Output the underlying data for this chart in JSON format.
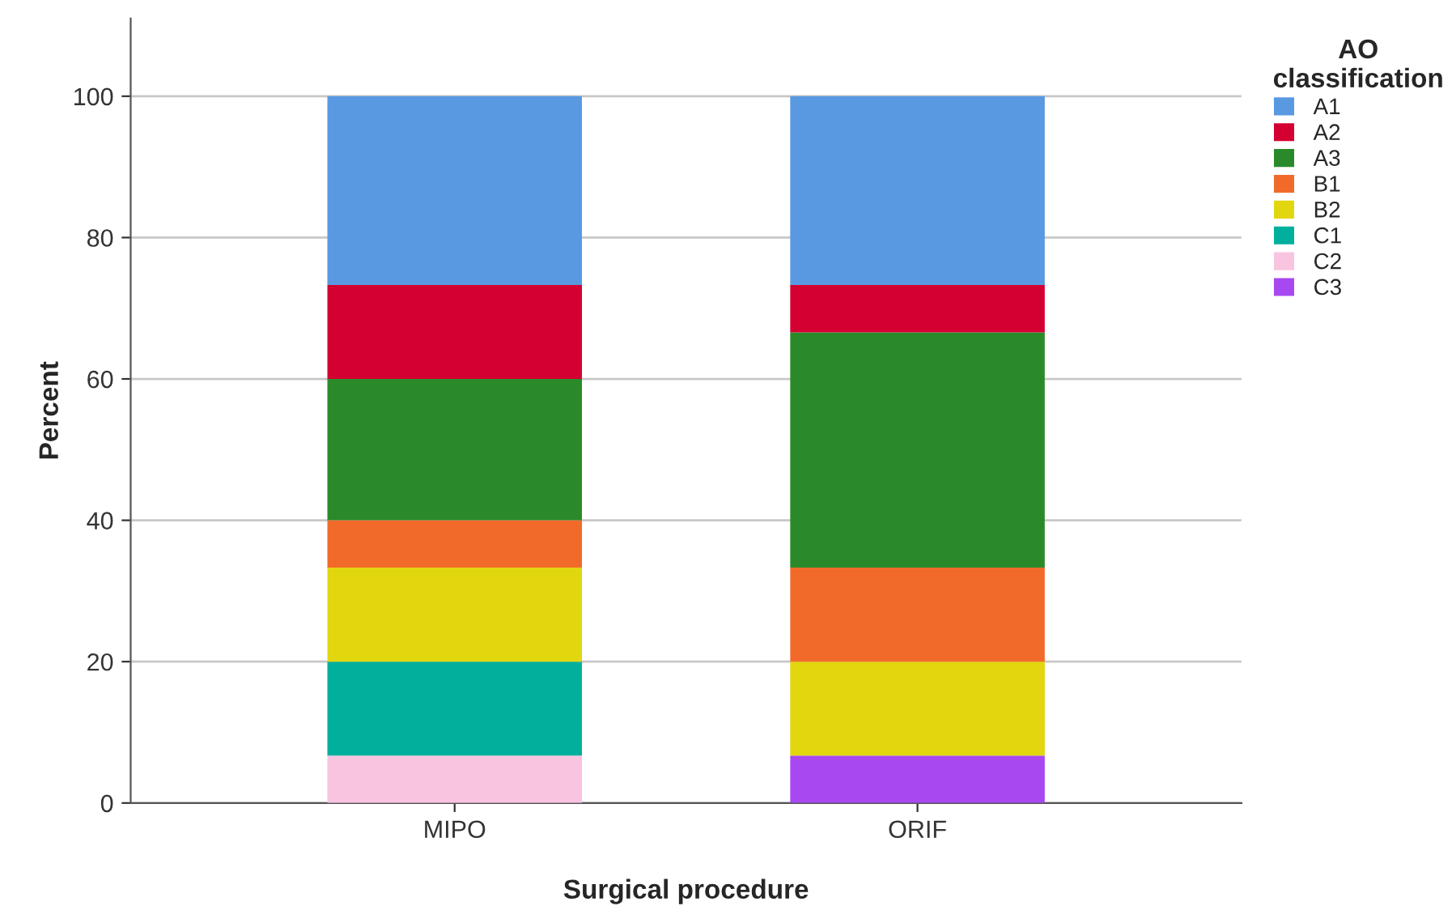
{
  "chart_data": {
    "type": "bar",
    "stacked": true,
    "xlabel": "Surgical procedure",
    "ylabel": "Percent",
    "legend_title": "AO classification",
    "categories": [
      "MIPO",
      "ORIF"
    ],
    "series": [
      {
        "name": "C3",
        "color": "#a848f0",
        "values": [
          null,
          6.7
        ]
      },
      {
        "name": "C2",
        "color": "#f9c4e0",
        "values": [
          6.7,
          null
        ]
      },
      {
        "name": "C1",
        "color": "#00b09c",
        "values": [
          13.3,
          null
        ]
      },
      {
        "name": "B2",
        "color": "#e2d60e",
        "values": [
          13.3,
          13.3
        ]
      },
      {
        "name": "B1",
        "color": "#f26a2a",
        "values": [
          6.7,
          13.3
        ]
      },
      {
        "name": "A3",
        "color": "#2a8a2a",
        "values": [
          20.0,
          33.3
        ]
      },
      {
        "name": "A2",
        "color": "#d40031",
        "values": [
          13.3,
          6.7
        ]
      },
      {
        "name": "A1",
        "color": "#5899e2",
        "values": [
          26.7,
          26.7
        ]
      }
    ],
    "ylim": [
      0,
      111
    ],
    "yticks": [
      0,
      20,
      40,
      60,
      80,
      100
    ],
    "grid": "y",
    "legend": "top right"
  }
}
